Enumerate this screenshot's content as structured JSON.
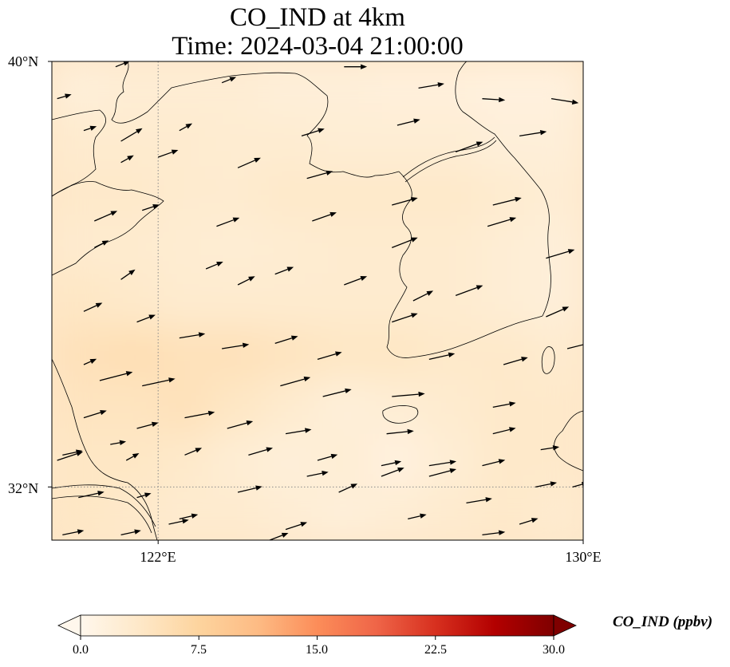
{
  "title": "CO_IND at 4km",
  "subtitle": "Time: 2024-03-04 21:00:00",
  "map": {
    "lon_range": [
      120,
      130
    ],
    "lat_range": [
      31,
      40
    ],
    "lat_ticks": [
      {
        "value": 40,
        "label": "40°N"
      },
      {
        "value": 32,
        "label": "32°N"
      }
    ],
    "lon_ticks": [
      {
        "value": 122,
        "label": "122°E"
      },
      {
        "value": 130,
        "label": "130°E"
      }
    ],
    "gridlines": {
      "style": "dotted",
      "lons": [
        122
      ],
      "lats": [
        32
      ]
    },
    "field_cells": [
      {
        "lon": 120.5,
        "lat": 39.5,
        "v": 2.0
      },
      {
        "lon": 121.5,
        "lat": 39.5,
        "v": 2.5
      },
      {
        "lon": 122.5,
        "lat": 39.5,
        "v": 2.5
      },
      {
        "lon": 123.5,
        "lat": 39.5,
        "v": 2.5
      },
      {
        "lon": 124.5,
        "lat": 39.5,
        "v": 2.0
      },
      {
        "lon": 125.5,
        "lat": 39.5,
        "v": 2.0
      },
      {
        "lon": 126.5,
        "lat": 39.5,
        "v": 1.8
      },
      {
        "lon": 127.5,
        "lat": 39.5,
        "v": 1.8
      },
      {
        "lon": 128.5,
        "lat": 39.5,
        "v": 1.5
      },
      {
        "lon": 129.5,
        "lat": 39.5,
        "v": 1.5
      },
      {
        "lon": 120.5,
        "lat": 38.5,
        "v": 3.0
      },
      {
        "lon": 121.5,
        "lat": 38.5,
        "v": 3.0
      },
      {
        "lon": 122.5,
        "lat": 38.5,
        "v": 3.0
      },
      {
        "lon": 123.5,
        "lat": 38.5,
        "v": 2.8
      },
      {
        "lon": 124.5,
        "lat": 38.5,
        "v": 2.8
      },
      {
        "lon": 125.5,
        "lat": 38.5,
        "v": 2.5
      },
      {
        "lon": 126.5,
        "lat": 38.5,
        "v": 2.5
      },
      {
        "lon": 127.5,
        "lat": 38.5,
        "v": 2.5
      },
      {
        "lon": 128.5,
        "lat": 38.5,
        "v": 2.0
      },
      {
        "lon": 129.5,
        "lat": 38.5,
        "v": 2.0
      },
      {
        "lon": 120.5,
        "lat": 37.5,
        "v": 3.5
      },
      {
        "lon": 121.5,
        "lat": 37.5,
        "v": 3.5
      },
      {
        "lon": 122.5,
        "lat": 37.5,
        "v": 3.0
      },
      {
        "lon": 123.5,
        "lat": 37.5,
        "v": 3.0
      },
      {
        "lon": 124.5,
        "lat": 37.5,
        "v": 3.5
      },
      {
        "lon": 125.5,
        "lat": 37.5,
        "v": 3.5
      },
      {
        "lon": 126.5,
        "lat": 37.5,
        "v": 3.5
      },
      {
        "lon": 127.5,
        "lat": 37.5,
        "v": 3.5
      },
      {
        "lon": 128.5,
        "lat": 37.5,
        "v": 3.0
      },
      {
        "lon": 129.5,
        "lat": 37.5,
        "v": 2.5
      },
      {
        "lon": 120.5,
        "lat": 36.5,
        "v": 3.0
      },
      {
        "lon": 121.5,
        "lat": 36.5,
        "v": 3.0
      },
      {
        "lon": 122.5,
        "lat": 36.5,
        "v": 2.8
      },
      {
        "lon": 123.5,
        "lat": 36.5,
        "v": 2.5
      },
      {
        "lon": 124.5,
        "lat": 36.5,
        "v": 2.8
      },
      {
        "lon": 125.5,
        "lat": 36.5,
        "v": 3.0
      },
      {
        "lon": 126.5,
        "lat": 36.5,
        "v": 3.0
      },
      {
        "lon": 127.5,
        "lat": 36.5,
        "v": 3.0
      },
      {
        "lon": 128.5,
        "lat": 36.5,
        "v": 2.5
      },
      {
        "lon": 129.5,
        "lat": 36.5,
        "v": 2.0
      },
      {
        "lon": 120.5,
        "lat": 35.5,
        "v": 4.0
      },
      {
        "lon": 121.5,
        "lat": 35.5,
        "v": 3.5
      },
      {
        "lon": 122.5,
        "lat": 35.5,
        "v": 3.0
      },
      {
        "lon": 123.5,
        "lat": 35.5,
        "v": 3.0
      },
      {
        "lon": 124.5,
        "lat": 35.5,
        "v": 3.0
      },
      {
        "lon": 125.5,
        "lat": 35.5,
        "v": 3.0
      },
      {
        "lon": 126.5,
        "lat": 35.5,
        "v": 3.0
      },
      {
        "lon": 127.5,
        "lat": 35.5,
        "v": 3.0
      },
      {
        "lon": 128.5,
        "lat": 35.5,
        "v": 2.5
      },
      {
        "lon": 129.5,
        "lat": 35.5,
        "v": 2.0
      },
      {
        "lon": 120.5,
        "lat": 34.5,
        "v": 5.0
      },
      {
        "lon": 121.5,
        "lat": 34.5,
        "v": 5.5
      },
      {
        "lon": 122.5,
        "lat": 34.5,
        "v": 5.0
      },
      {
        "lon": 123.5,
        "lat": 34.5,
        "v": 5.0
      },
      {
        "lon": 124.5,
        "lat": 34.5,
        "v": 4.5
      },
      {
        "lon": 125.5,
        "lat": 34.5,
        "v": 4.0
      },
      {
        "lon": 126.5,
        "lat": 34.5,
        "v": 4.0
      },
      {
        "lon": 127.5,
        "lat": 34.5,
        "v": 3.5
      },
      {
        "lon": 128.5,
        "lat": 34.5,
        "v": 3.5
      },
      {
        "lon": 129.5,
        "lat": 34.5,
        "v": 3.0
      },
      {
        "lon": 120.5,
        "lat": 33.5,
        "v": 4.5
      },
      {
        "lon": 121.5,
        "lat": 33.5,
        "v": 4.5
      },
      {
        "lon": 122.5,
        "lat": 33.5,
        "v": 5.0
      },
      {
        "lon": 123.5,
        "lat": 33.5,
        "v": 4.0
      },
      {
        "lon": 124.5,
        "lat": 33.5,
        "v": 3.0
      },
      {
        "lon": 125.5,
        "lat": 33.5,
        "v": 2.0
      },
      {
        "lon": 126.5,
        "lat": 33.5,
        "v": 2.5
      },
      {
        "lon": 127.5,
        "lat": 33.5,
        "v": 3.0
      },
      {
        "lon": 128.5,
        "lat": 33.5,
        "v": 3.5
      },
      {
        "lon": 129.5,
        "lat": 33.5,
        "v": 3.5
      },
      {
        "lon": 120.5,
        "lat": 32.5,
        "v": 4.0
      },
      {
        "lon": 121.5,
        "lat": 32.5,
        "v": 4.0
      },
      {
        "lon": 122.5,
        "lat": 32.5,
        "v": 3.5
      },
      {
        "lon": 123.5,
        "lat": 32.5,
        "v": 2.5
      },
      {
        "lon": 124.5,
        "lat": 32.5,
        "v": 2.0
      },
      {
        "lon": 125.5,
        "lat": 32.5,
        "v": 2.5
      },
      {
        "lon": 126.5,
        "lat": 32.5,
        "v": 1.5
      },
      {
        "lon": 127.5,
        "lat": 32.5,
        "v": 2.5
      },
      {
        "lon": 128.5,
        "lat": 32.5,
        "v": 3.5
      },
      {
        "lon": 129.5,
        "lat": 32.5,
        "v": 3.5
      },
      {
        "lon": 120.5,
        "lat": 31.5,
        "v": 4.0
      },
      {
        "lon": 121.5,
        "lat": 31.5,
        "v": 3.5
      },
      {
        "lon": 122.5,
        "lat": 31.5,
        "v": 3.0
      },
      {
        "lon": 123.5,
        "lat": 31.5,
        "v": 3.0
      },
      {
        "lon": 124.5,
        "lat": 31.5,
        "v": 2.5
      },
      {
        "lon": 125.5,
        "lat": 31.5,
        "v": 2.0
      },
      {
        "lon": 126.5,
        "lat": 31.5,
        "v": 2.5
      },
      {
        "lon": 127.5,
        "lat": 31.5,
        "v": 3.0
      },
      {
        "lon": 128.5,
        "lat": 31.5,
        "v": 3.5
      },
      {
        "lon": 129.5,
        "lat": 31.5,
        "v": 3.0
      }
    ],
    "wind_arrows": [
      {
        "lon": 120.1,
        "lat": 39.3,
        "u": 1.0,
        "v": 0.3
      },
      {
        "lon": 121.2,
        "lat": 39.9,
        "u": 1.0,
        "v": 0.4
      },
      {
        "lon": 123.2,
        "lat": 39.6,
        "u": 1.0,
        "v": 0.4
      },
      {
        "lon": 125.5,
        "lat": 39.9,
        "u": 1.6,
        "v": 0.0
      },
      {
        "lon": 126.9,
        "lat": 39.5,
        "u": 1.8,
        "v": 0.3
      },
      {
        "lon": 128.1,
        "lat": 39.3,
        "u": 1.6,
        "v": -0.1
      },
      {
        "lon": 129.4,
        "lat": 39.3,
        "u": 1.9,
        "v": -0.3
      },
      {
        "lon": 120.6,
        "lat": 38.7,
        "u": 0.9,
        "v": 0.3
      },
      {
        "lon": 121.3,
        "lat": 38.5,
        "u": 1.5,
        "v": 0.9
      },
      {
        "lon": 122.4,
        "lat": 38.7,
        "u": 0.9,
        "v": 0.5
      },
      {
        "lon": 124.7,
        "lat": 38.6,
        "u": 1.6,
        "v": 0.5
      },
      {
        "lon": 126.5,
        "lat": 38.8,
        "u": 1.6,
        "v": 0.4
      },
      {
        "lon": 127.6,
        "lat": 38.3,
        "u": 1.9,
        "v": 0.7
      },
      {
        "lon": 128.8,
        "lat": 38.6,
        "u": 1.9,
        "v": 0.3
      },
      {
        "lon": 121.3,
        "lat": 38.1,
        "u": 0.9,
        "v": 0.5
      },
      {
        "lon": 122.0,
        "lat": 38.2,
        "u": 1.4,
        "v": 0.5
      },
      {
        "lon": 123.5,
        "lat": 38.0,
        "u": 1.6,
        "v": 0.7
      },
      {
        "lon": 124.8,
        "lat": 37.8,
        "u": 1.8,
        "v": 0.5
      },
      {
        "lon": 126.4,
        "lat": 37.3,
        "u": 1.8,
        "v": 0.5
      },
      {
        "lon": 128.3,
        "lat": 37.3,
        "u": 2.0,
        "v": 0.5
      },
      {
        "lon": 120.8,
        "lat": 37.0,
        "u": 1.6,
        "v": 0.7
      },
      {
        "lon": 121.7,
        "lat": 37.2,
        "u": 1.2,
        "v": 0.4
      },
      {
        "lon": 123.1,
        "lat": 36.9,
        "u": 1.6,
        "v": 0.6
      },
      {
        "lon": 124.9,
        "lat": 37.0,
        "u": 1.7,
        "v": 0.6
      },
      {
        "lon": 126.4,
        "lat": 36.5,
        "u": 1.8,
        "v": 0.7
      },
      {
        "lon": 128.2,
        "lat": 36.9,
        "u": 2.0,
        "v": 0.6
      },
      {
        "lon": 129.3,
        "lat": 36.3,
        "u": 2.0,
        "v": 0.6
      },
      {
        "lon": 120.8,
        "lat": 36.5,
        "u": 1.0,
        "v": 0.5
      },
      {
        "lon": 121.3,
        "lat": 35.9,
        "u": 1.0,
        "v": 0.7
      },
      {
        "lon": 122.9,
        "lat": 36.1,
        "u": 1.2,
        "v": 0.5
      },
      {
        "lon": 123.5,
        "lat": 35.8,
        "u": 1.2,
        "v": 0.6
      },
      {
        "lon": 124.2,
        "lat": 36.0,
        "u": 1.3,
        "v": 0.5
      },
      {
        "lon": 125.5,
        "lat": 35.8,
        "u": 1.6,
        "v": 0.6
      },
      {
        "lon": 126.8,
        "lat": 35.5,
        "u": 1.4,
        "v": 0.7
      },
      {
        "lon": 127.6,
        "lat": 35.6,
        "u": 1.9,
        "v": 0.7
      },
      {
        "lon": 129.3,
        "lat": 35.2,
        "u": 1.6,
        "v": 0.7
      },
      {
        "lon": 120.6,
        "lat": 35.3,
        "u": 1.3,
        "v": 0.6
      },
      {
        "lon": 121.6,
        "lat": 35.1,
        "u": 1.3,
        "v": 0.5
      },
      {
        "lon": 122.4,
        "lat": 34.8,
        "u": 1.8,
        "v": 0.3
      },
      {
        "lon": 123.2,
        "lat": 34.6,
        "u": 1.9,
        "v": 0.3
      },
      {
        "lon": 124.2,
        "lat": 34.7,
        "u": 1.6,
        "v": 0.5
      },
      {
        "lon": 125.0,
        "lat": 34.4,
        "u": 1.7,
        "v": 0.5
      },
      {
        "lon": 126.4,
        "lat": 35.1,
        "u": 1.8,
        "v": 0.6
      },
      {
        "lon": 127.1,
        "lat": 34.4,
        "u": 1.8,
        "v": 0.4
      },
      {
        "lon": 128.5,
        "lat": 34.3,
        "u": 1.7,
        "v": 0.5
      },
      {
        "lon": 129.7,
        "lat": 34.6,
        "u": 1.6,
        "v": 0.4
      },
      {
        "lon": 120.6,
        "lat": 34.3,
        "u": 0.9,
        "v": 0.4
      },
      {
        "lon": 120.9,
        "lat": 34.0,
        "u": 2.3,
        "v": 0.6
      },
      {
        "lon": 121.7,
        "lat": 33.9,
        "u": 2.3,
        "v": 0.5
      },
      {
        "lon": 124.3,
        "lat": 33.9,
        "u": 2.1,
        "v": 0.6
      },
      {
        "lon": 125.1,
        "lat": 33.7,
        "u": 2.0,
        "v": 0.5
      },
      {
        "lon": 126.4,
        "lat": 33.7,
        "u": 2.3,
        "v": 0.2
      },
      {
        "lon": 128.3,
        "lat": 33.5,
        "u": 1.6,
        "v": 0.3
      },
      {
        "lon": 120.6,
        "lat": 33.3,
        "u": 1.6,
        "v": 0.5
      },
      {
        "lon": 121.6,
        "lat": 33.1,
        "u": 1.5,
        "v": 0.4
      },
      {
        "lon": 122.5,
        "lat": 33.3,
        "u": 2.1,
        "v": 0.4
      },
      {
        "lon": 123.3,
        "lat": 33.1,
        "u": 1.8,
        "v": 0.5
      },
      {
        "lon": 124.4,
        "lat": 33.0,
        "u": 1.8,
        "v": 0.3
      },
      {
        "lon": 126.3,
        "lat": 33.0,
        "u": 1.9,
        "v": 0.2
      },
      {
        "lon": 128.3,
        "lat": 33.0,
        "u": 1.6,
        "v": 0.4
      },
      {
        "lon": 129.2,
        "lat": 32.7,
        "u": 1.3,
        "v": 0.2
      },
      {
        "lon": 120.2,
        "lat": 32.6,
        "u": 1.4,
        "v": 0.3
      },
      {
        "lon": 121.1,
        "lat": 32.8,
        "u": 1.1,
        "v": 0.2
      },
      {
        "lon": 121.4,
        "lat": 32.5,
        "u": 0.9,
        "v": 0.5
      },
      {
        "lon": 122.5,
        "lat": 32.6,
        "u": 1.2,
        "v": 0.5
      },
      {
        "lon": 123.7,
        "lat": 32.6,
        "u": 1.7,
        "v": 0.5
      },
      {
        "lon": 125.0,
        "lat": 32.5,
        "u": 1.4,
        "v": 0.4
      },
      {
        "lon": 126.2,
        "lat": 32.4,
        "u": 1.4,
        "v": 0.3
      },
      {
        "lon": 127.1,
        "lat": 32.4,
        "u": 1.9,
        "v": 0.3
      },
      {
        "lon": 128.1,
        "lat": 32.4,
        "u": 1.6,
        "v": 0.4
      },
      {
        "lon": 120.1,
        "lat": 32.5,
        "u": 1.8,
        "v": 0.6
      },
      {
        "lon": 124.8,
        "lat": 32.2,
        "u": 1.5,
        "v": 0.3
      },
      {
        "lon": 126.2,
        "lat": 32.2,
        "u": 1.6,
        "v": 0.6
      },
      {
        "lon": 127.1,
        "lat": 32.2,
        "u": 1.9,
        "v": 0.5
      },
      {
        "lon": 129.1,
        "lat": 32.0,
        "u": 1.5,
        "v": 0.3
      },
      {
        "lon": 129.8,
        "lat": 32.0,
        "u": 1.1,
        "v": 0.3
      },
      {
        "lon": 120.5,
        "lat": 31.8,
        "u": 1.8,
        "v": 0.4
      },
      {
        "lon": 121.6,
        "lat": 31.8,
        "u": 1.0,
        "v": 0.3
      },
      {
        "lon": 122.4,
        "lat": 31.4,
        "u": 1.3,
        "v": 0.3
      },
      {
        "lon": 123.5,
        "lat": 31.9,
        "u": 1.7,
        "v": 0.4
      },
      {
        "lon": 124.4,
        "lat": 31.2,
        "u": 1.5,
        "v": 0.5
      },
      {
        "lon": 125.4,
        "lat": 31.9,
        "u": 1.3,
        "v": 0.6
      },
      {
        "lon": 126.7,
        "lat": 31.4,
        "u": 1.3,
        "v": 0.3
      },
      {
        "lon": 127.8,
        "lat": 31.7,
        "u": 1.8,
        "v": 0.3
      },
      {
        "lon": 128.8,
        "lat": 31.3,
        "u": 1.3,
        "v": 0.4
      },
      {
        "lon": 120.2,
        "lat": 31.1,
        "u": 1.5,
        "v": 0.3
      },
      {
        "lon": 121.3,
        "lat": 31.1,
        "u": 1.4,
        "v": 0.3
      },
      {
        "lon": 122.2,
        "lat": 31.3,
        "u": 1.4,
        "v": 0.3
      },
      {
        "lon": 124.1,
        "lat": 31.0,
        "u": 1.3,
        "v": 0.5
      },
      {
        "lon": 128.1,
        "lat": 31.1,
        "u": 1.6,
        "v": 0.2
      }
    ]
  },
  "colorbar": {
    "label": "CO_IND (ppbv)",
    "min": 0.0,
    "max": 30.0,
    "colormap": "OrRd",
    "extend": "both",
    "ticks": [
      {
        "value": 0.0,
        "label": "0.0"
      },
      {
        "value": 7.5,
        "label": "7.5"
      },
      {
        "value": 15.0,
        "label": "15.0"
      },
      {
        "value": 22.5,
        "label": "22.5"
      },
      {
        "value": 30.0,
        "label": "30.0"
      }
    ]
  },
  "colors": {
    "coastline": "#000000",
    "arrow": "#000000",
    "gridline": "#8a8a8a",
    "cmap_stops": [
      "#fff7ec",
      "#fee8c8",
      "#fdd49e",
      "#fdbb84",
      "#fc8d59",
      "#ef6548",
      "#d7301f",
      "#b30000",
      "#7f0000"
    ]
  }
}
